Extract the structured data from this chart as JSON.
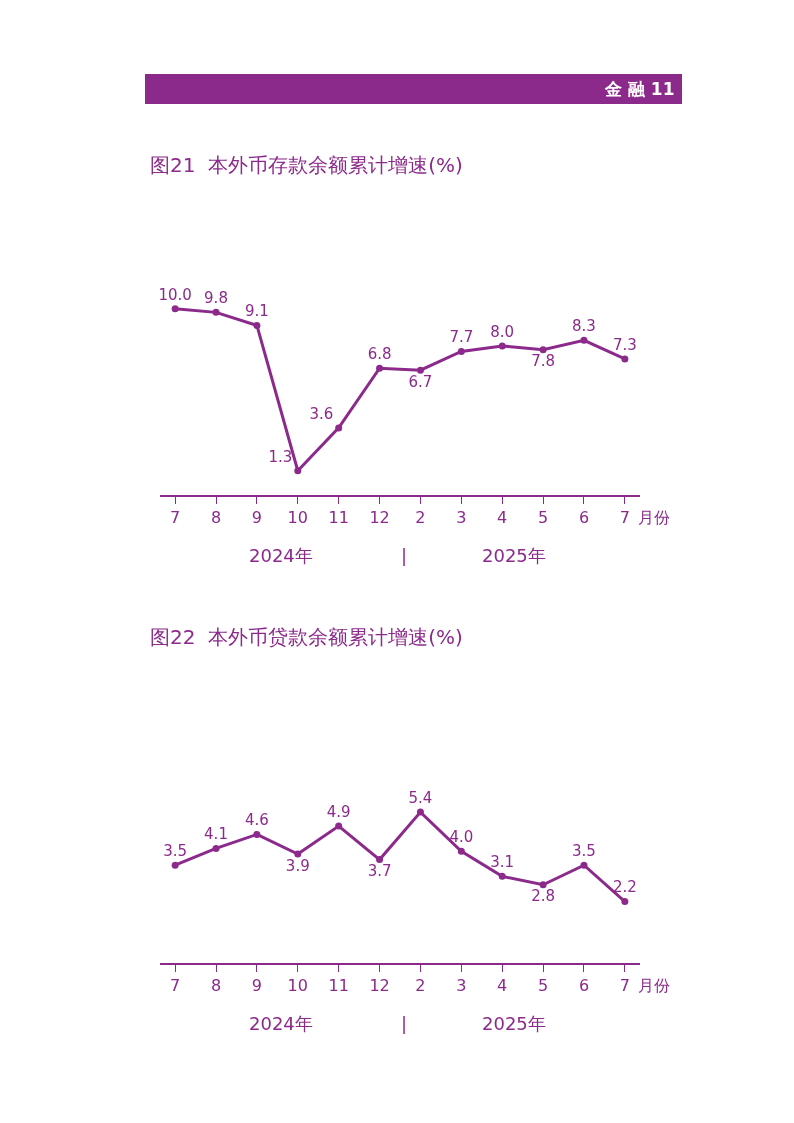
{
  "chart_data": [
    {
      "type": "line",
      "title": "图21  本外币存款余额累计增速(%)",
      "xlabel": "月份",
      "categories": [
        "7",
        "8",
        "9",
        "10",
        "11",
        "12",
        "2",
        "3",
        "4",
        "5",
        "6",
        "7"
      ],
      "series": [
        {
          "color": "#8c2a8c",
          "values": [
            10.0,
            9.8,
            9.1,
            1.3,
            3.6,
            6.8,
            6.7,
            7.7,
            8.0,
            7.8,
            8.3,
            7.3
          ],
          "value_labels": [
            "10.0",
            "9.8",
            "9.1",
            "1.3",
            "3.6",
            "6.8",
            "6.7",
            "7.7",
            "8.0",
            "7.8",
            "8.3",
            "7.3"
          ]
        }
      ],
      "marker": "circle",
      "line_style": "solid",
      "tick_labels": "x",
      "annotations": [
        "金 融 11",
        "2024年",
        "|",
        "2025年"
      ]
    },
    {
      "type": "line",
      "title": "图22  本外币贷款余额累计增速(%)",
      "xlabel": "月份",
      "categories": [
        "7",
        "8",
        "9",
        "10",
        "11",
        "12",
        "2",
        "3",
        "4",
        "5",
        "6",
        "7"
      ],
      "series": [
        {
          "color": "#8c2a8c",
          "values": [
            3.5,
            4.1,
            4.6,
            3.9,
            4.9,
            3.7,
            5.4,
            4.0,
            3.1,
            2.8,
            3.5,
            2.2
          ],
          "value_labels": [
            "3.5",
            "4.1",
            "4.6",
            "3.9",
            "4.9",
            "3.7",
            "5.4",
            "4.0",
            "3.1",
            "2.8",
            "3.5",
            "2.2"
          ]
        }
      ],
      "marker": "circle",
      "line_style": "solid",
      "tick_labels": "x",
      "annotations": [
        "2024年",
        "|",
        "2025年"
      ]
    }
  ]
}
